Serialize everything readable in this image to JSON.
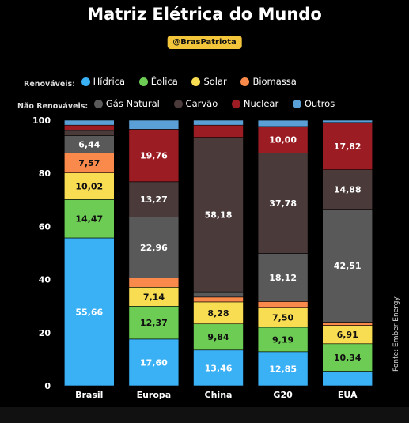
{
  "title": "Matriz Elétrica do Mundo",
  "handle": "@BrasPatriota",
  "source": "Fonte: Ember Energy",
  "legend": {
    "renewables_label": "Renováveis:",
    "nonrenewables_label": "Não Renováveis:",
    "renewables": [
      {
        "name": "Hídrica",
        "color": "#3ab0f5"
      },
      {
        "name": "Éolica",
        "color": "#6ccc53"
      },
      {
        "name": "Solar",
        "color": "#f8dc52"
      },
      {
        "name": "Biomassa",
        "color": "#f98a4b"
      }
    ],
    "nonrenewables": [
      {
        "name": "Gás Natural",
        "color": "#595959"
      },
      {
        "name": "Carvão",
        "color": "#4a3a3a"
      },
      {
        "name": "Nuclear",
        "color": "#9b1c22"
      },
      {
        "name": "Outros",
        "color": "#5aa0d6"
      }
    ]
  },
  "chart_data": {
    "type": "bar",
    "stacked": true,
    "categories": [
      "Brasil",
      "Europa",
      "China",
      "G20",
      "EUA"
    ],
    "ylim": [
      0,
      100
    ],
    "yticks": [
      0,
      20,
      40,
      60,
      80,
      100
    ],
    "series": [
      {
        "name": "Hídrica",
        "color": "#3ab0f5",
        "values": [
          55.66,
          17.6,
          13.46,
          12.85,
          5.5
        ],
        "labels": [
          "55,66",
          "17,60",
          "13,46",
          "12,85",
          ""
        ]
      },
      {
        "name": "Éolica",
        "color": "#6ccc53",
        "values": [
          14.47,
          12.37,
          9.84,
          9.19,
          10.34
        ],
        "labels": [
          "14,47",
          "12,37",
          "9,84",
          "9,19",
          "10,34"
        ]
      },
      {
        "name": "Solar",
        "color": "#f8dc52",
        "values": [
          10.02,
          7.14,
          8.28,
          7.5,
          6.91
        ],
        "labels": [
          "10,02",
          "7,14",
          "8,28",
          "7,50",
          "6,91"
        ]
      },
      {
        "name": "Biomassa",
        "color": "#f98a4b",
        "values": [
          7.57,
          3.5,
          1.8,
          2.2,
          1.2
        ],
        "labels": [
          "7,57",
          "",
          "",
          "",
          ""
        ]
      },
      {
        "name": "Gás Natural",
        "color": "#595959",
        "values": [
          6.44,
          22.96,
          2.0,
          18.12,
          42.51
        ],
        "labels": [
          "6,44",
          "22,96",
          "",
          "18,12",
          "42,51"
        ]
      },
      {
        "name": "Carvão",
        "color": "#4a3a3a",
        "values": [
          2.0,
          13.27,
          58.18,
          37.78,
          14.88
        ],
        "labels": [
          "",
          "13,27",
          "58,18",
          "37,78",
          "14,88"
        ]
      },
      {
        "name": "Nuclear",
        "color": "#9b1c22",
        "values": [
          2.0,
          19.76,
          4.6,
          10.0,
          17.82
        ],
        "labels": [
          "",
          "19,76",
          "",
          "10,00",
          "17,82"
        ]
      },
      {
        "name": "Outros",
        "color": "#5aa0d6",
        "values": [
          1.84,
          3.4,
          1.84,
          2.34,
          0.84
        ],
        "labels": [
          "",
          "",
          "",
          "",
          ""
        ]
      }
    ]
  }
}
